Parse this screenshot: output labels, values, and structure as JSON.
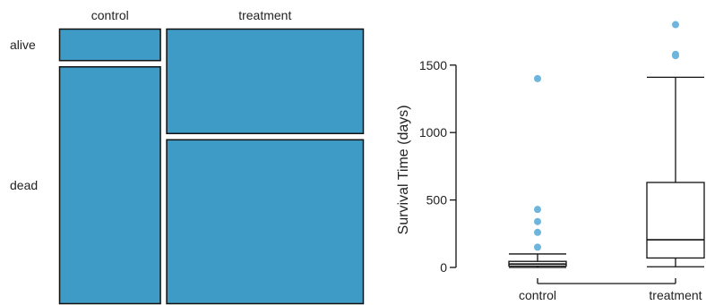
{
  "colors": {
    "fill": "#3d9bc6",
    "outlier": "#6db5dc",
    "stroke": "#111111",
    "background": "#ffffff"
  },
  "chart_data": [
    {
      "type": "mosaic",
      "columns": [
        "control",
        "treatment"
      ],
      "rows": [
        "alive",
        "dead"
      ],
      "column_proportions": [
        0.34,
        0.66
      ],
      "row_proportions_within_column": {
        "control": [
          0.12,
          0.88
        ],
        "treatment": [
          0.39,
          0.61
        ]
      }
    },
    {
      "type": "boxplot",
      "ylabel": "Survival Time (days)",
      "ylim": [
        0,
        1850
      ],
      "yticks": [
        0,
        500,
        1000,
        1500
      ],
      "categories": [
        "control",
        "treatment"
      ],
      "boxes": [
        {
          "name": "control",
          "whisker_low": 0,
          "q1": 10,
          "median": 25,
          "q3": 45,
          "whisker_high": 100,
          "outliers": [
            150,
            260,
            340,
            430,
            1400
          ]
        },
        {
          "name": "treatment",
          "whisker_low": 5,
          "q1": 70,
          "median": 205,
          "q3": 630,
          "whisker_high": 1410,
          "outliers": [
            1570,
            1580,
            1800
          ]
        }
      ]
    }
  ]
}
